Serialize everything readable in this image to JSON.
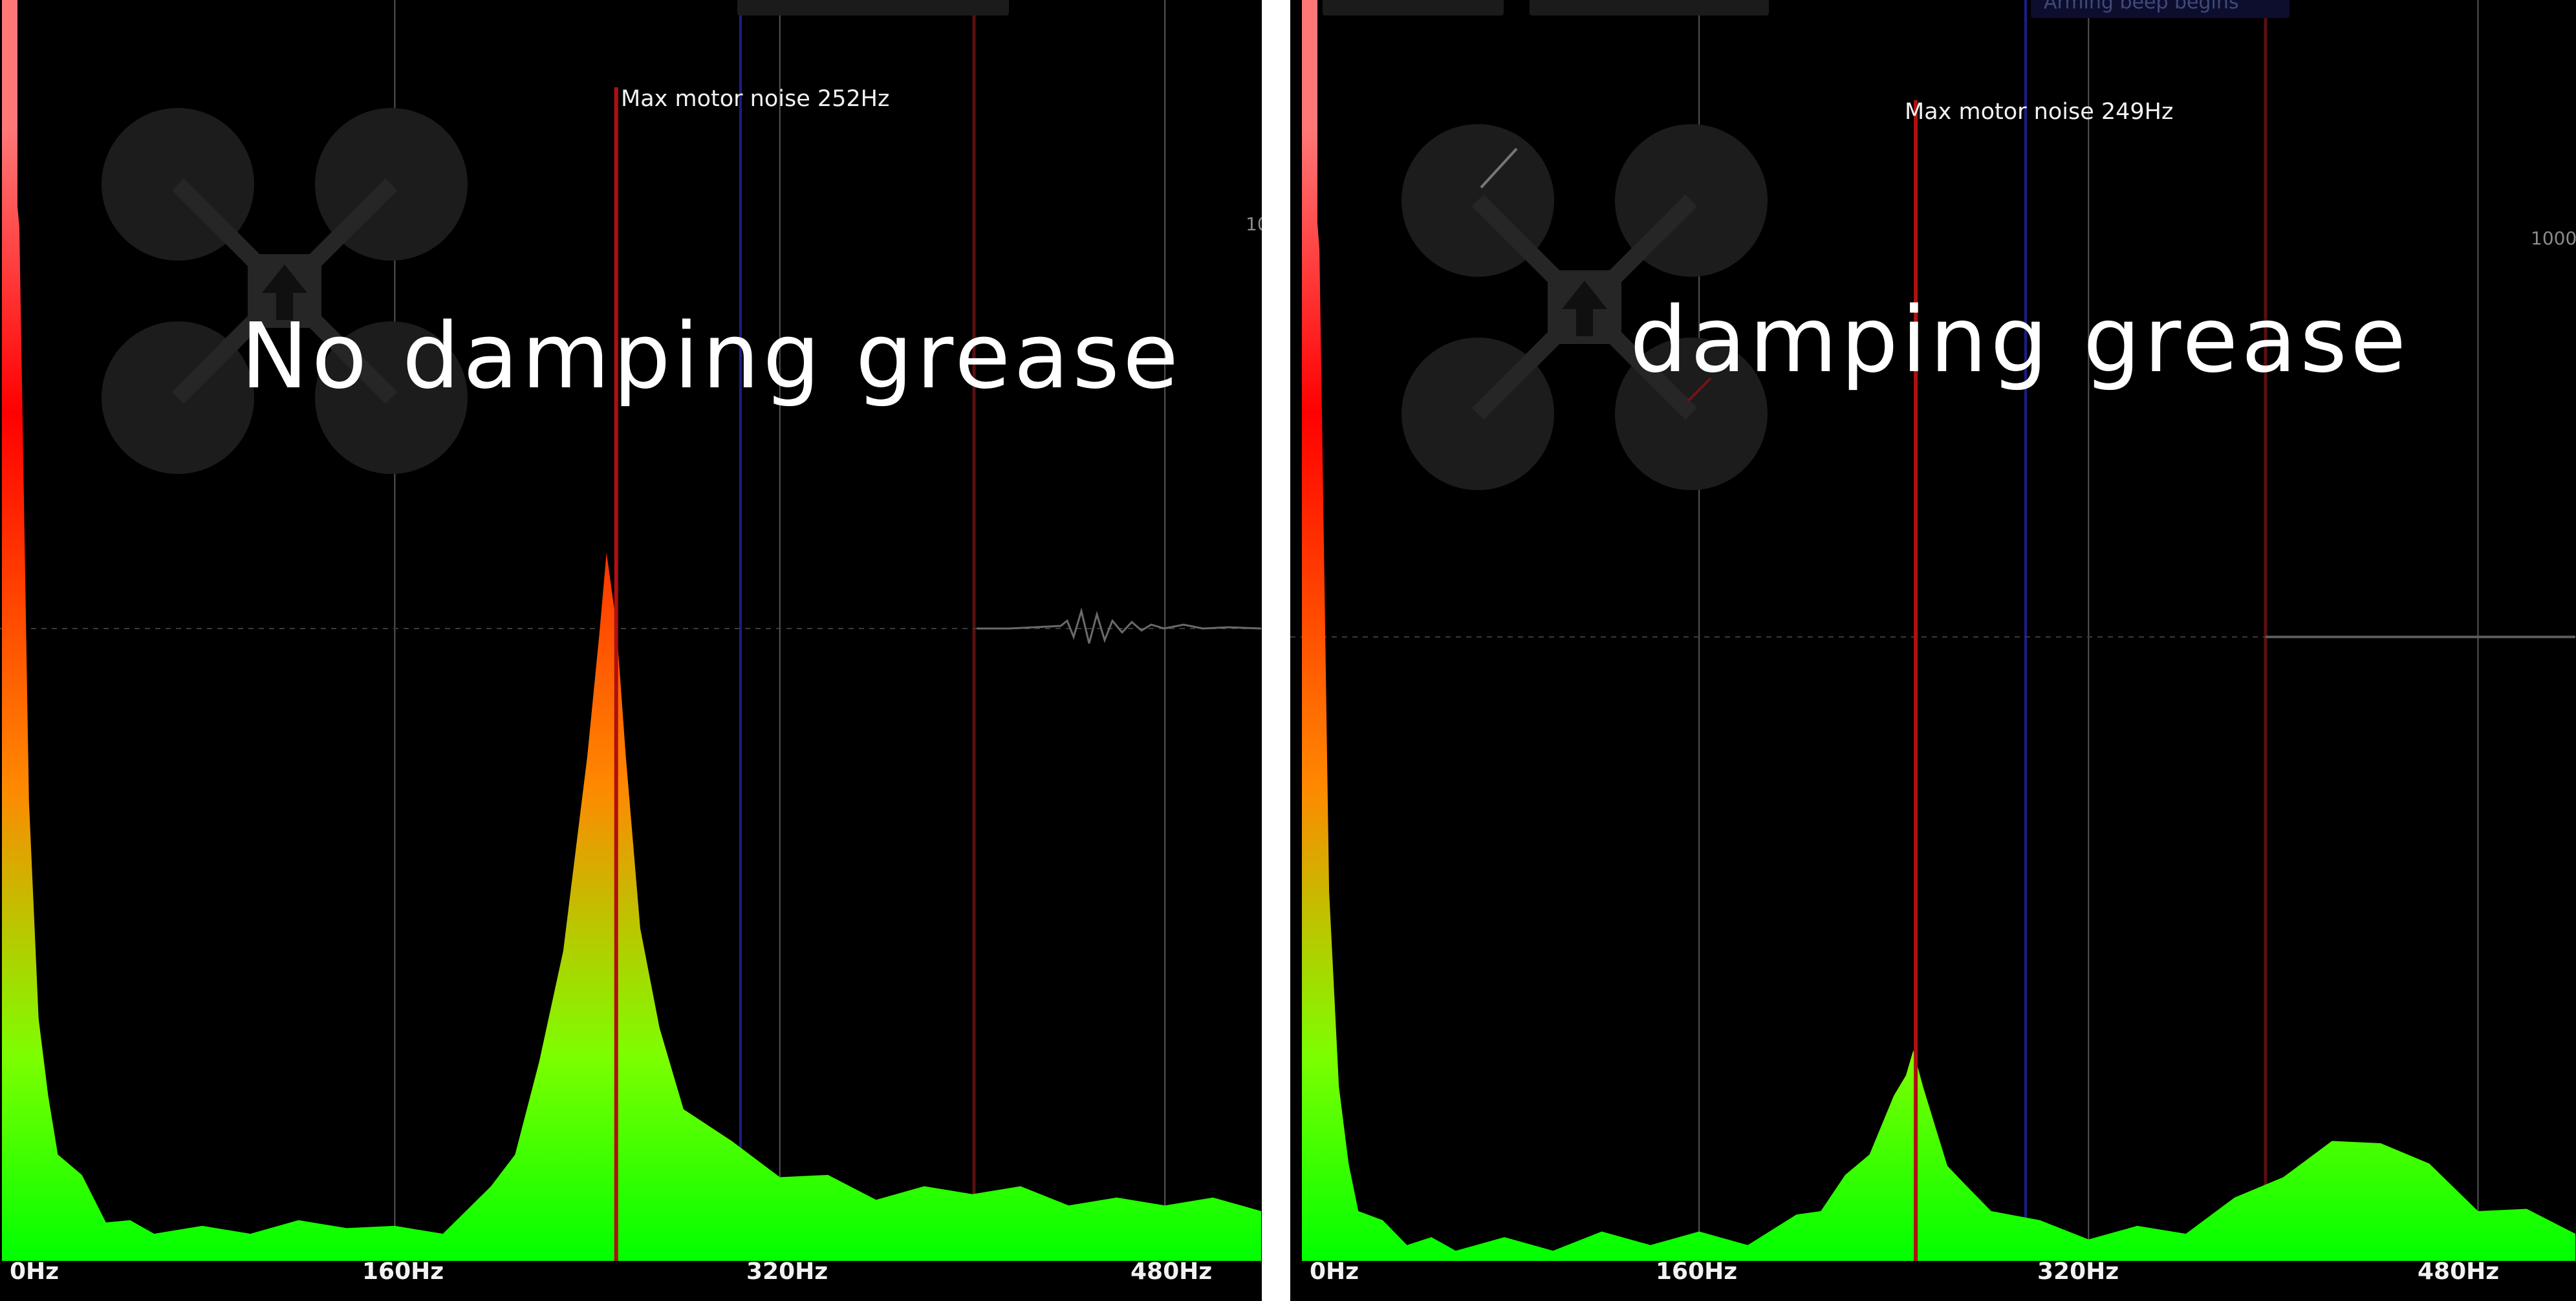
{
  "colors": {
    "spectrum_low": "#00ff00",
    "spectrum_high": "#ff0000",
    "marker": "#b01010",
    "grid": "#555555",
    "background": "#000000"
  },
  "freq_labels": [
    "0Hz",
    "160Hz",
    "320Hz",
    "480Hz"
  ],
  "panels": [
    {
      "caption": "No damping grease",
      "marker_label": "Max motor noise 252Hz",
      "side_label": "10",
      "top_tag": ""
    },
    {
      "caption": "damping grease",
      "marker_label": "Max motor noise 249Hz",
      "side_label": "1000",
      "top_tag": "Arming beep begins"
    }
  ],
  "icon": "quadcopter-icon",
  "chart_data": [
    {
      "type": "area",
      "title": "No damping grease",
      "xlabel": "",
      "ylabel": "",
      "x_ticks": [
        "0Hz",
        "160Hz",
        "320Hz",
        "480Hz"
      ],
      "xlim": [
        0,
        520
      ],
      "ylim": [
        0,
        1
      ],
      "grid": true,
      "marker": {
        "label": "Max motor noise 252Hz",
        "x": 252
      },
      "x": [
        0,
        4,
        8,
        12,
        16,
        20,
        30,
        40,
        50,
        60,
        80,
        100,
        120,
        140,
        160,
        180,
        200,
        210,
        220,
        230,
        240,
        245,
        248,
        252,
        256,
        262,
        270,
        280,
        300,
        320,
        340,
        360,
        380,
        400,
        420,
        440,
        460,
        480,
        500,
        520
      ],
      "values": [
        1.0,
        0.92,
        0.4,
        0.22,
        0.14,
        0.1,
        0.07,
        0.04,
        0.03,
        0.03,
        0.025,
        0.03,
        0.03,
        0.035,
        0.025,
        0.03,
        0.06,
        0.1,
        0.17,
        0.28,
        0.44,
        0.56,
        0.62,
        0.57,
        0.44,
        0.3,
        0.2,
        0.14,
        0.1,
        0.08,
        0.07,
        0.06,
        0.06,
        0.065,
        0.06,
        0.055,
        0.05,
        0.055,
        0.05,
        0.05
      ]
    },
    {
      "type": "area",
      "title": "damping grease",
      "xlabel": "",
      "ylabel": "",
      "x_ticks": [
        "0Hz",
        "160Hz",
        "320Hz",
        "480Hz"
      ],
      "xlim": [
        0,
        520
      ],
      "ylim": [
        0,
        1
      ],
      "grid": true,
      "marker": {
        "label": "Max motor noise 249Hz",
        "x": 249
      },
      "x": [
        0,
        4,
        8,
        12,
        16,
        20,
        30,
        40,
        50,
        60,
        80,
        100,
        120,
        140,
        160,
        180,
        200,
        210,
        220,
        230,
        240,
        245,
        248,
        252,
        256,
        262,
        270,
        280,
        300,
        320,
        340,
        360,
        380,
        400,
        420,
        440,
        460,
        480,
        500,
        520
      ],
      "values": [
        1.0,
        0.9,
        0.32,
        0.16,
        0.08,
        0.05,
        0.03,
        0.02,
        0.015,
        0.015,
        0.015,
        0.015,
        0.02,
        0.02,
        0.02,
        0.02,
        0.035,
        0.05,
        0.07,
        0.1,
        0.14,
        0.17,
        0.18,
        0.16,
        0.12,
        0.09,
        0.06,
        0.05,
        0.03,
        0.025,
        0.025,
        0.03,
        0.05,
        0.08,
        0.1,
        0.11,
        0.08,
        0.05,
        0.04,
        0.03
      ]
    }
  ]
}
